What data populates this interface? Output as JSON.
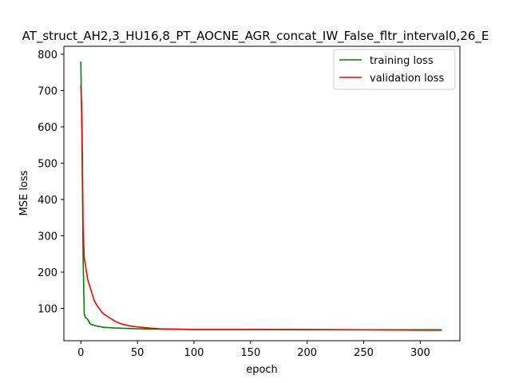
{
  "chart_data": {
    "type": "line",
    "title": "AT_struct_AH2,3_HU16,8_PT_AOCNE_AGR_concat_IW_False_fltr_interval0,26_E",
    "xlabel": "epoch",
    "ylabel": "MSE loss",
    "xlim": [
      -15,
      335
    ],
    "ylim": [
      11,
      822
    ],
    "xticks": [
      0,
      50,
      100,
      150,
      200,
      250,
      300
    ],
    "yticks": [
      100,
      200,
      300,
      400,
      500,
      600,
      700,
      800
    ],
    "grid": false,
    "legend_position": "top-right",
    "series": [
      {
        "name": "training loss",
        "color": "#008000",
        "x": [
          0,
          1,
          2,
          3,
          4,
          5,
          6,
          7,
          8,
          10,
          12,
          15,
          20,
          25,
          30,
          40,
          50,
          60,
          80,
          100,
          150,
          200,
          250,
          300,
          319
        ],
        "y": [
          780,
          560,
          240,
          85,
          75,
          73,
          70,
          65,
          58,
          55,
          53,
          51,
          48,
          47,
          46,
          45,
          44,
          43,
          43,
          42,
          42,
          42,
          41,
          41,
          41
        ]
      },
      {
        "name": "validation loss",
        "color": "#ff0000",
        "x": [
          0,
          1,
          2,
          3,
          4,
          5,
          6,
          7,
          8,
          10,
          12,
          15,
          18,
          20,
          25,
          30,
          35,
          40,
          45,
          50,
          60,
          70,
          80,
          100,
          120,
          150,
          200,
          250,
          300,
          319
        ],
        "y": [
          715,
          620,
          320,
          240,
          220,
          200,
          180,
          170,
          160,
          140,
          120,
          105,
          92,
          85,
          75,
          65,
          58,
          54,
          51,
          49,
          46,
          44,
          43,
          42,
          42,
          42,
          41,
          41,
          40,
          40
        ]
      }
    ]
  }
}
